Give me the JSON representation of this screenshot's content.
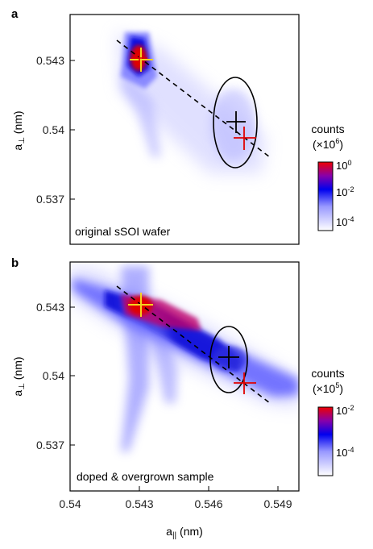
{
  "panels": [
    {
      "letter": "a",
      "caption": "original sSOI wafer",
      "y_ticks": [
        "0.543",
        "0.54",
        "0.537"
      ],
      "y_label_main": "a",
      "y_label_sub": "⊥",
      "y_label_unit": " (nm)",
      "colorbar": {
        "title_line1": "counts",
        "title_line2_pre": "(×10",
        "title_line2_exp": "6",
        "title_line2_post": ")",
        "top_base": "10",
        "top_exp": "0",
        "mid_base": "10",
        "mid_exp": "-2",
        "bot_base": "10",
        "bot_exp": "-4",
        "colors": [
          "#ffffff",
          "#0000ff",
          "#ff0000"
        ]
      }
    },
    {
      "letter": "b",
      "caption": "doped & overgrown sample",
      "y_ticks": [
        "0.543",
        "0.54",
        "0.537"
      ],
      "y_label_main": "a",
      "y_label_sub": "⊥",
      "y_label_unit": " (nm)",
      "x_ticks": [
        "0.54",
        "0.543",
        "0.546",
        "0.549"
      ],
      "x_label_main": "a",
      "x_label_sub": "||",
      "x_label_unit": " (nm)",
      "colorbar": {
        "title_line1": "counts",
        "title_line2_pre": "(×10",
        "title_line2_exp": "5",
        "title_line2_post": ")",
        "top_base": "10",
        "top_exp": "-2",
        "bot_base": "10",
        "bot_exp": "-4",
        "colors": [
          "#ffffff",
          "#0000ff",
          "#ff0000"
        ]
      }
    }
  ]
}
